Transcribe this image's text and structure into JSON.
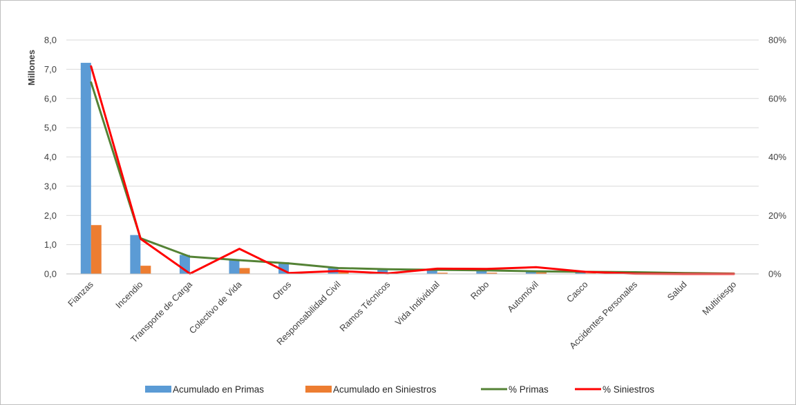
{
  "chart_data": {
    "type": "bar",
    "categories": [
      "Fianzas",
      "Incendio",
      "Transporte de Carga",
      "Colectivo de Vida",
      "Otros",
      "Responsabilidad Civil",
      "Ramos Técnicos",
      "Vida Individual",
      "Robo",
      "Automóvil",
      "Casco",
      "Accidentes Personales",
      "Salud",
      "Multiriesgo"
    ],
    "ylabel": "Millones",
    "ylim": [
      0,
      8
    ],
    "y_ticks": [
      "0,0",
      "1,0",
      "2,0",
      "3,0",
      "4,0",
      "5,0",
      "6,0",
      "7,0",
      "8,0"
    ],
    "y2lim": [
      0,
      80
    ],
    "y2_ticks": [
      "0%",
      "20%",
      "40%",
      "60%",
      "80%"
    ],
    "grid": true,
    "legend_position": "bottom",
    "series": [
      {
        "name": "Acumulado en Primas",
        "kind": "bar",
        "axis": "left",
        "color": "#5b9bd5",
        "values": [
          7.22,
          1.33,
          0.65,
          0.48,
          0.4,
          0.22,
          0.18,
          0.15,
          0.13,
          0.1,
          0.08,
          0.07,
          0.03,
          0.01
        ]
      },
      {
        "name": "Acumulado en Siniestros",
        "kind": "bar",
        "axis": "left",
        "color": "#ed7d31",
        "values": [
          1.67,
          0.28,
          0.0,
          0.2,
          0.01,
          0.06,
          0.0,
          0.04,
          0.04,
          0.05,
          0.02,
          0.0,
          0.0,
          0.0
        ]
      },
      {
        "name": "% Primas",
        "kind": "line",
        "axis": "right",
        "color": "#548235",
        "values": [
          65.5,
          12.2,
          5.9,
          4.7,
          3.6,
          2.0,
          1.6,
          1.4,
          1.2,
          0.9,
          0.7,
          0.6,
          0.3,
          0.1
        ]
      },
      {
        "name": "% Siniestros",
        "kind": "line",
        "axis": "right",
        "color": "#ff0000",
        "values": [
          71.0,
          12.0,
          0.1,
          8.6,
          0.3,
          1.0,
          0.2,
          1.8,
          1.7,
          2.3,
          0.7,
          0.1,
          0.0,
          0.0
        ]
      }
    ]
  }
}
